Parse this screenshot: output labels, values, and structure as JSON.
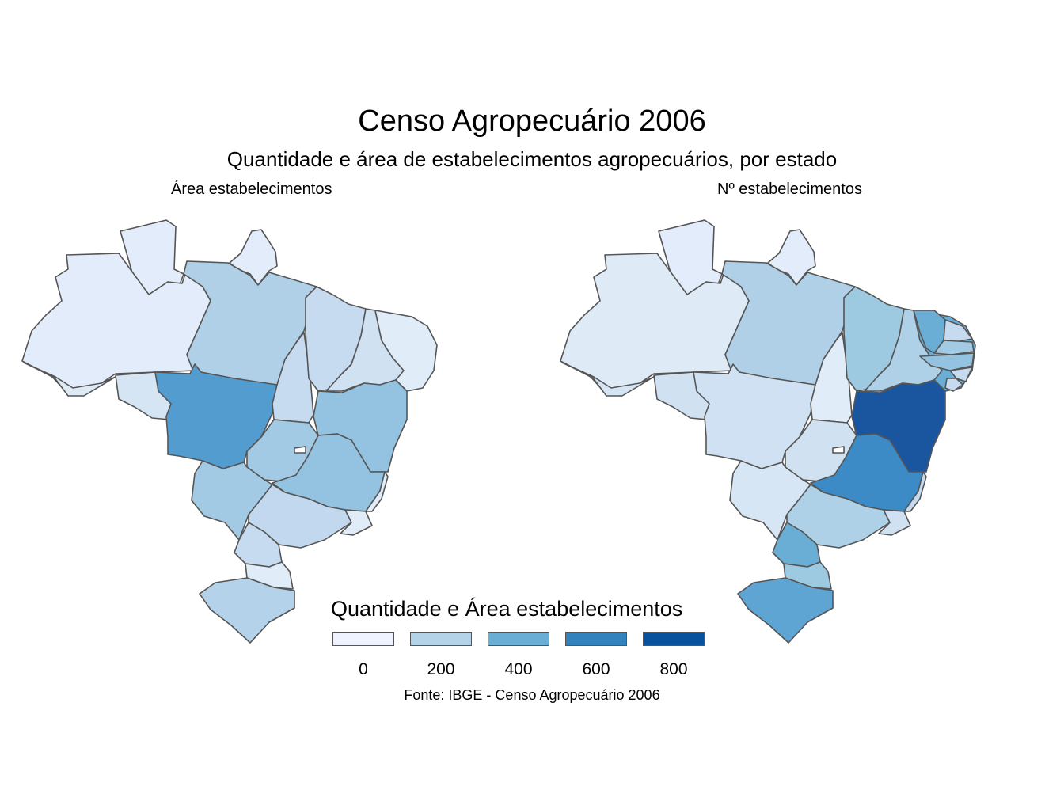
{
  "title": "Censo Agropecuário 2006",
  "subtitle": "Quantidade e área de estabelecimentos agropecuários, por estado",
  "panels": [
    {
      "label": "Área estabelecimentos",
      "states": {
        "AC": "#deebf7",
        "AM": "#e3ecfa",
        "RR": "#e3ecfa",
        "AP": "#e3ecfa",
        "PA": "#afd0e6",
        "RO": "#d5e5f4",
        "MT": "#539cd0",
        "TO": "#c6dbef",
        "MA": "#c6dbef",
        "PI": "#d0e1f2",
        "NE": "#e0ecf8",
        "BA": "#93c3e0",
        "GO": "#a2cae4",
        "DF": "#ffffff",
        "MG": "#93c3e0",
        "MS": "#a2cae4",
        "SP": "#c1d8ee",
        "ES": "#e0ecf8",
        "RJ": "#e0ecf8",
        "PR": "#c6dbef",
        "SC": "#e0ecf8",
        "RS": "#b4d3ea"
      }
    },
    {
      "label": "Nº estabelecimentos",
      "states": {
        "AC": "#d5e5f4",
        "AM": "#deebf7",
        "RR": "#e3ecfa",
        "AP": "#e3ecfa",
        "PA": "#afd0e6",
        "RO": "#d0e1f2",
        "MT": "#cfe1f2",
        "TO": "#e0ecf8",
        "MA": "#9ecae1",
        "PI": "#aed1e7",
        "CE": "#6aaed6",
        "RN": "#c6dbef",
        "PB": "#a2cae4",
        "PE": "#93c3e0",
        "AL": "#c6dbef",
        "SE": "#c6dbef",
        "BA": "#1a56a0",
        "GO": "#d0e1f2",
        "DF": "#ffffff",
        "MG": "#3d8bc6",
        "MS": "#d7e6f5",
        "SP": "#aed1e7",
        "ES": "#c6dbef",
        "RJ": "#d0e1f2",
        "PR": "#6aaed6",
        "SC": "#9ecae1",
        "RS": "#5fa5d3"
      }
    }
  ],
  "legend": {
    "title": "Quantidade e Área estabelecimentos",
    "items": [
      {
        "label": "0",
        "color": "#eff3ff"
      },
      {
        "label": "200",
        "color": "#b4d3e9"
      },
      {
        "label": "400",
        "color": "#6aaed6"
      },
      {
        "label": "600",
        "color": "#3182bd"
      },
      {
        "label": "800",
        "color": "#08519c"
      }
    ]
  },
  "caption": "Fonte: IBGE - Censo Agropecuário 2006"
}
